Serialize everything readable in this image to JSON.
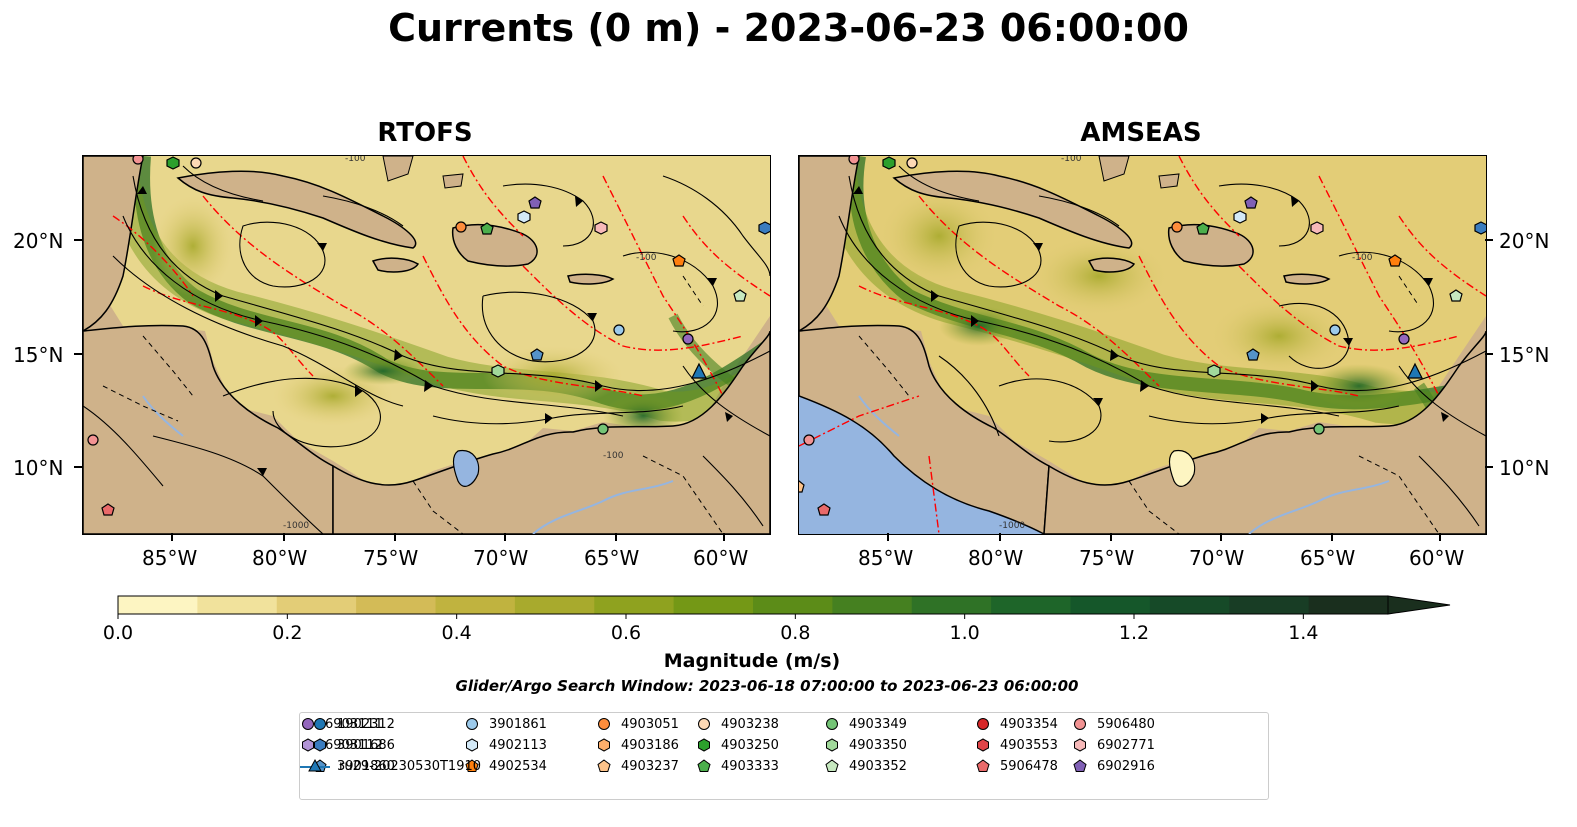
{
  "title": "Currents (0 m) - 2023-06-23 06:00:00",
  "panels": [
    {
      "name": "RTOFS"
    },
    {
      "name": "AMSEAS"
    }
  ],
  "axes": {
    "x_ticks": [
      "85°W",
      "80°W",
      "75°W",
      "70°W",
      "65°W",
      "60°W"
    ],
    "y_ticks": [
      "20°N",
      "15°N",
      "10°N"
    ]
  },
  "colors": {
    "land": "#cfb28a",
    "pacific": "#95b5e0",
    "boundary_red": "#ff0000",
    "coast": "#000000"
  },
  "colorbar": {
    "label": "Magnitude (m/s)",
    "ticks": [
      "0.0",
      "0.2",
      "0.4",
      "0.6",
      "0.8",
      "1.0",
      "1.2",
      "1.4"
    ],
    "colors": [
      "#fdf5c2",
      "#f1e29c",
      "#e3cd77",
      "#d3bb57",
      "#c0b33f",
      "#a8aa2d",
      "#8fa21f",
      "#749816",
      "#5c8c18",
      "#458020",
      "#2f7226",
      "#1e6529",
      "#15572a",
      "#164a28",
      "#183d25",
      "#1a2f1e"
    ]
  },
  "search_window": "Glider/Argo Search Window: 2023-06-18 07:00:00 to 2023-06-23 06:00:00",
  "legend": {
    "items": [
      {
        "label": "1902312",
        "shape": "circle",
        "color": "#1f77b4"
      },
      {
        "label": "3901686",
        "shape": "hexagon",
        "color": "#3a7cbf"
      },
      {
        "label": "3901860",
        "shape": "pentagon",
        "color": "#5593c9"
      },
      {
        "label": "3901861",
        "shape": "circle",
        "color": "#9ccaeb"
      },
      {
        "label": "4902113",
        "shape": "hexagon",
        "color": "#d3e9f7"
      },
      {
        "label": "4902534",
        "shape": "pentagon",
        "color": "#ff7f0e"
      },
      {
        "label": "4903051",
        "shape": "circle",
        "color": "#fd8d3c"
      },
      {
        "label": "4903186",
        "shape": "hexagon",
        "color": "#fdae6b"
      },
      {
        "label": "4903237",
        "shape": "pentagon",
        "color": "#fdc38a"
      },
      {
        "label": "4903238",
        "shape": "circle",
        "color": "#fdd9b5"
      },
      {
        "label": "4903250",
        "shape": "hexagon",
        "color": "#2ca02c"
      },
      {
        "label": "4903333",
        "shape": "pentagon",
        "color": "#4caf4c"
      },
      {
        "label": "4903349",
        "shape": "circle",
        "color": "#74c476"
      },
      {
        "label": "4903350",
        "shape": "hexagon",
        "color": "#a1d99b"
      },
      {
        "label": "4903352",
        "shape": "pentagon",
        "color": "#c7e9c0"
      },
      {
        "label": "4903354",
        "shape": "circle",
        "color": "#d62728"
      },
      {
        "label": "4903553",
        "shape": "hexagon",
        "color": "#e04448"
      },
      {
        "label": "5906478",
        "shape": "pentagon",
        "color": "#ea6a6a"
      },
      {
        "label": "5906480",
        "shape": "circle",
        "color": "#f29393"
      },
      {
        "label": "6902771",
        "shape": "hexagon",
        "color": "#f7b9b9"
      },
      {
        "label": "6902916",
        "shape": "pentagon",
        "color": "#8060b5"
      },
      {
        "label": "6903111",
        "shape": "circle",
        "color": "#9467bd"
      },
      {
        "label": "6903112",
        "shape": "hexagon",
        "color": "#b294d6"
      },
      {
        "label": "ru29-20230530T1910",
        "shape": "triangle-line",
        "color": "#1f77b4"
      }
    ]
  }
}
